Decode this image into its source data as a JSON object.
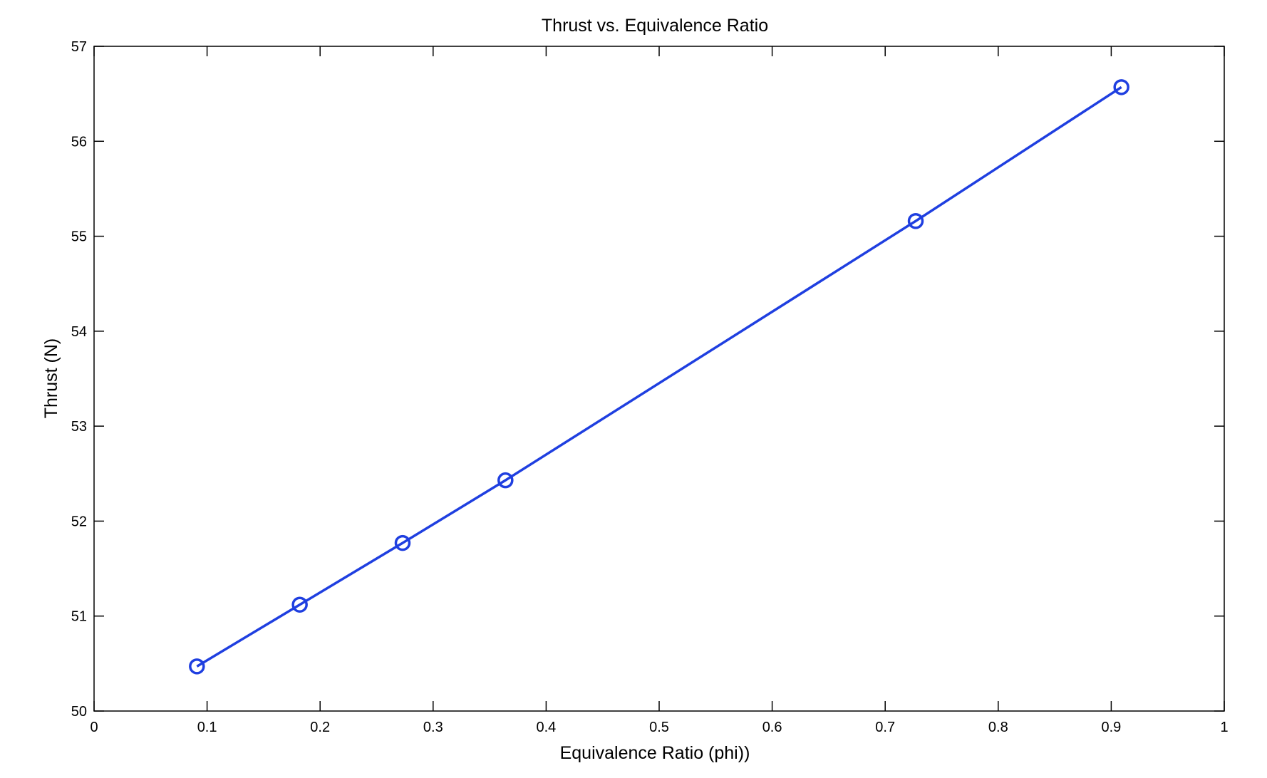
{
  "chart_data": {
    "type": "line",
    "title": "Thrust vs. Equivalence Ratio",
    "xlabel": "Equivalence Ratio (phi))",
    "ylabel": "Thrust (N)",
    "xlim": [
      0,
      1
    ],
    "ylim": [
      50,
      57
    ],
    "xticks": [
      "0",
      "0.1",
      "0.2",
      "0.3",
      "0.4",
      "0.5",
      "0.6",
      "0.7",
      "0.8",
      "0.9",
      "1"
    ],
    "yticks": [
      "50",
      "51",
      "52",
      "53",
      "54",
      "55",
      "56",
      "57"
    ],
    "grid": false,
    "marker": "circle",
    "series": [
      {
        "color": "#1f3fe0",
        "x": [
          0.091,
          0.182,
          0.273,
          0.364,
          0.727,
          0.909
        ],
        "y": [
          50.47,
          51.12,
          51.77,
          52.43,
          55.16,
          56.57
        ]
      }
    ]
  }
}
